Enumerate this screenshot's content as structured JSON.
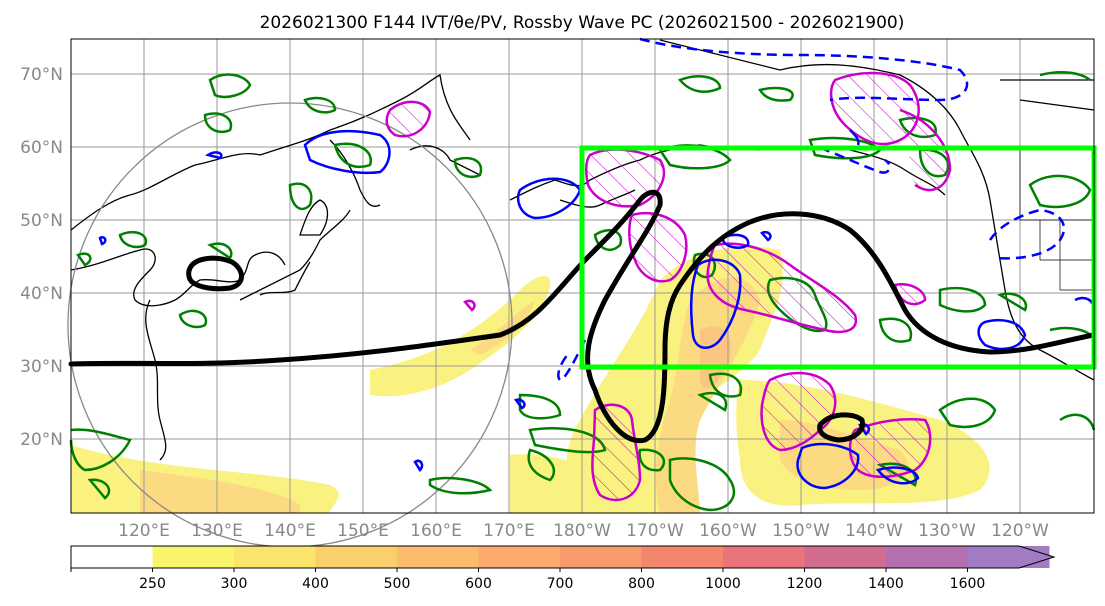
{
  "title": "2026021300 F144 IVT/θe/PV, Rossby Wave PC (2026021500 - 2026021900)",
  "lat_labels": [
    "70°N",
    "60°N",
    "50°N",
    "40°N",
    "30°N",
    "20°N"
  ],
  "lon_labels": [
    "120°E",
    "130°E",
    "140°E",
    "150°E",
    "160°E",
    "170°E",
    "180°W",
    "170°W",
    "160°W",
    "150°W",
    "140°W",
    "130°W",
    "120°W"
  ],
  "colorbar": {
    "ticks": [
      "250",
      "300",
      "400",
      "500",
      "600",
      "700",
      "800",
      "1000",
      "1200",
      "1400",
      "1600"
    ],
    "colors": [
      "#ffffff",
      "#f9f46c",
      "#fbe46c",
      "#fbd06c",
      "#fbbd6c",
      "#fcaa6d",
      "#f99a6e",
      "#f5866e",
      "#e9747a",
      "#d26c8f",
      "#b56fae",
      "#a37ac4"
    ]
  },
  "colors": {
    "box": "#00ff00",
    "jet": "#000000",
    "positive_contour": "#0000ff",
    "negative_contour": "#cc00cc",
    "theta_e": "#008000",
    "grid": "#999999",
    "circle": "#888888"
  }
}
